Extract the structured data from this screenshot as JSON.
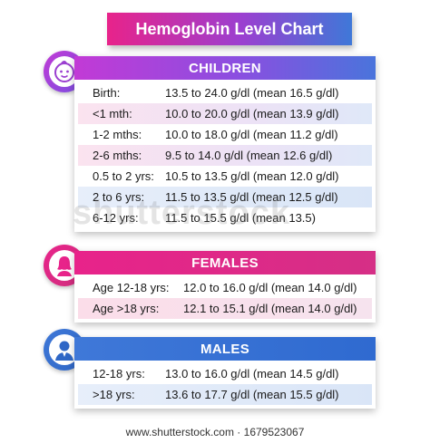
{
  "title": "Hemoglobin Level Chart",
  "children": {
    "header": "CHILDREN",
    "icon": "baby-face-icon",
    "rows": [
      {
        "label": "Birth:",
        "value": "13.5 to 24.0 g/dl (mean 16.5 g/dl)"
      },
      {
        "label": "<1 mth:",
        "value": "10.0 to 20.0 g/dl (mean 13.9 g/dl)"
      },
      {
        "label": "1-2 mths:",
        "value": "10.0 to 18.0 g/dl (mean 11.2 g/dl)"
      },
      {
        "label": "2-6 mths:",
        "value": "9.5 to 14.0 g/dl (mean 12.6 g/dl)"
      },
      {
        "label": "0.5 to 2 yrs:",
        "value": "10.5 to 13.5 g/dl (mean 12.0 g/dl)"
      },
      {
        "label": "2 to 6 yrs:",
        "value": "11.5 to 13.5 g/dl (mean 12.5 g/dl)"
      },
      {
        "label": "6-12 yrs:",
        "value": "11.5 to 15.5 g/dl (mean 13.5)"
      }
    ]
  },
  "females": {
    "header": "FEMALES",
    "icon": "female-person-icon",
    "rows": [
      {
        "label": "Age 12-18 yrs:",
        "value": "12.0 to 16.0 g/dl (mean 14.0 g/dl)"
      },
      {
        "label": "Age >18 yrs:",
        "value": "12.1 to 15.1 g/dl (mean 14.0 g/dl)"
      }
    ]
  },
  "males": {
    "header": "MALES",
    "icon": "male-person-icon",
    "rows": [
      {
        "label": "12-18 yrs:",
        "value": "13.0 to 16.0 g/dl (mean 14.5 g/dl)"
      },
      {
        "label": ">18 yrs:",
        "value": "13.6 to 17.7 g/dl (mean 15.5 g/dl)"
      }
    ]
  },
  "watermark": "shutterstock",
  "footer": "www.shutterstock.com · 1679523067",
  "colors": {
    "pink": "#e8238a",
    "purple": "#9b3fd0",
    "blue": "#3f78d8"
  }
}
